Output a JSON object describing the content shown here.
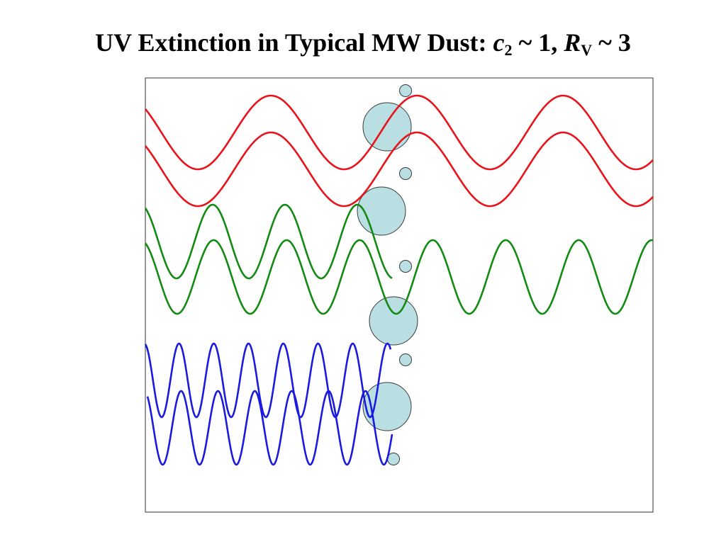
{
  "title": {
    "lead": "UV Extinction in Typical MW Dust: ",
    "var1": "c",
    "sub1": "2",
    "mid": " ~ 1, ",
    "var2": "R",
    "sub2": "V",
    "tail": " ~ 3"
  },
  "colors": {
    "red_wave": "#e8141c",
    "green_wave": "#138a13",
    "blue_wave": "#1a1ae0",
    "grain_fill": "#b9dfe2",
    "grain_stroke": "#3a3a3a",
    "frame_stroke": "#333333"
  },
  "diagram": {
    "waves": [
      {
        "name": "red-wave-upper",
        "band": "red",
        "transmitted": true
      },
      {
        "name": "red-wave-lower",
        "band": "red",
        "transmitted": true
      },
      {
        "name": "green-wave-upper",
        "band": "green",
        "transmitted": false
      },
      {
        "name": "green-wave-lower",
        "band": "green",
        "transmitted": true
      },
      {
        "name": "blue-wave-upper",
        "band": "blue",
        "transmitted": false
      },
      {
        "name": "blue-wave-lower",
        "band": "blue",
        "transmitted": false
      }
    ],
    "grains": [
      {
        "name": "small-dust-grain-1",
        "size": "small"
      },
      {
        "name": "large-dust-grain-1",
        "size": "large"
      },
      {
        "name": "small-dust-grain-2",
        "size": "small"
      },
      {
        "name": "large-dust-grain-2",
        "size": "large"
      },
      {
        "name": "small-dust-grain-3",
        "size": "small"
      },
      {
        "name": "large-dust-grain-3",
        "size": "large"
      },
      {
        "name": "small-dust-grain-4",
        "size": "small"
      },
      {
        "name": "large-dust-grain-4",
        "size": "large"
      },
      {
        "name": "small-dust-grain-5",
        "size": "small"
      }
    ]
  }
}
